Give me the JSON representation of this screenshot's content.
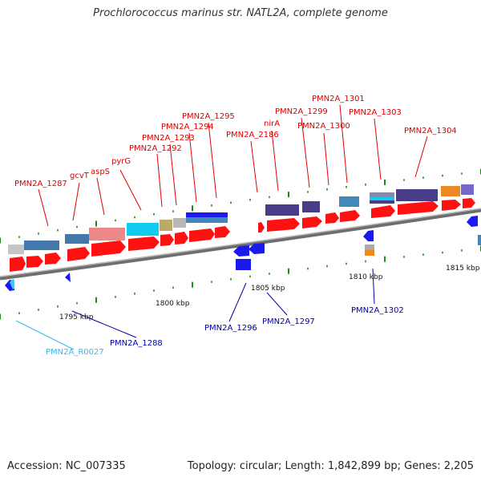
{
  "title": "Prochlorococcus marinus str. NATL2A, complete genome",
  "footer": {
    "accession": "Accession: NC_007335",
    "topology": "Topology: circular; Length: 1,842,899 bp; Genes: 2,205"
  },
  "colors": {
    "forward_label": "#dd0000",
    "reverse_label": "#0000aa",
    "rna_label": "#33bbee",
    "forward_gene": "#ff1111",
    "reverse_gene": "#1a1aee",
    "backbone": "#777777",
    "tick": "#1a8a1a"
  },
  "scale_labels": [
    "1795 kbp",
    "1800 kbp",
    "1805 kbp",
    "1810 kbp",
    "1815 kbp"
  ],
  "forward_labels": [
    "PMN2A_1287",
    "gcvT",
    "aspS",
    "pyrG",
    "PMN2A_1292",
    "PMN2A_1293",
    "PMN2A_1294",
    "PMN2A_1295",
    "PMN2A_2186",
    "nirA",
    "PMN2A_1299",
    "PMN2A_1300",
    "PMN2A_1301",
    "PMN2A_1303",
    "PMN2A_1304"
  ],
  "reverse_labels": [
    "PMN2A_R0027",
    "PMN2A_1288",
    "PMN2A_1296",
    "PMN2A_1297",
    "PMN2A_1302"
  ]
}
